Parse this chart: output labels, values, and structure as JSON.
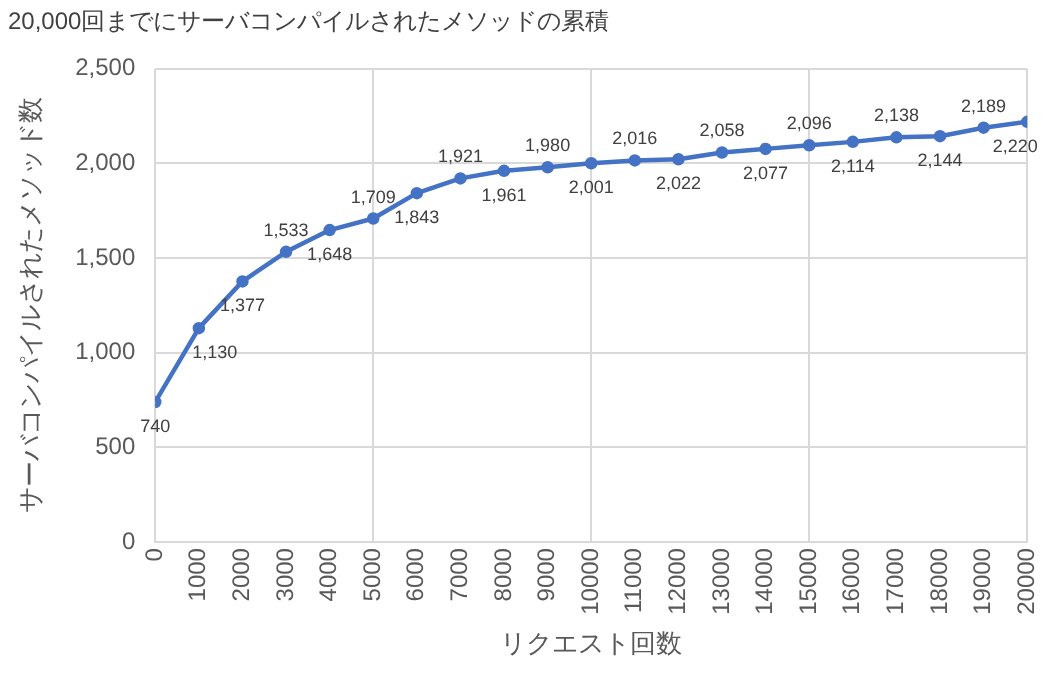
{
  "chart_data": {
    "type": "line",
    "title": "20,000回までにサーバコンパイルされたメソッドの累積",
    "xlabel": "リクエスト回数",
    "ylabel": "サーバコンパイルされたメソッド数",
    "x": [
      0,
      1000,
      2000,
      3000,
      4000,
      5000,
      6000,
      7000,
      8000,
      9000,
      10000,
      11000,
      12000,
      13000,
      14000,
      15000,
      16000,
      17000,
      18000,
      19000,
      20000
    ],
    "series": [
      {
        "color": "#4472c4",
        "values": [
          740,
          1130,
          1377,
          1533,
          1648,
          1709,
          1843,
          1921,
          1961,
          1980,
          2001,
          2016,
          2022,
          2058,
          2077,
          2096,
          2114,
          2138,
          2144,
          2189,
          2220
        ],
        "value_labels": [
          "740",
          "1,130",
          "1,377",
          "1,533",
          "1,648",
          "1,709",
          "1,843",
          "1,921",
          "1,961",
          "1,980",
          "2,001",
          "2,016",
          "2,022",
          "2,058",
          "2,077",
          "2,096",
          "2,114",
          "2,138",
          "2,144",
          "2,189",
          "2,220"
        ]
      }
    ],
    "xlim": [
      0,
      20000
    ],
    "xticks": [
      0,
      1000,
      2000,
      3000,
      4000,
      5000,
      6000,
      7000,
      8000,
      9000,
      10000,
      11000,
      12000,
      13000,
      14000,
      15000,
      16000,
      17000,
      18000,
      19000,
      20000
    ],
    "ylim": [
      0,
      2500
    ],
    "yticks": [
      {
        "value": 0,
        "label": "0"
      },
      {
        "value": 500,
        "label": "500"
      },
      {
        "value": 1000,
        "label": "1,000"
      },
      {
        "value": 1500,
        "label": "1,500"
      },
      {
        "value": 2000,
        "label": "2,000"
      },
      {
        "value": 2500,
        "label": "2,500"
      }
    ],
    "grid": true,
    "marker": "circle",
    "line_style": "solid"
  }
}
